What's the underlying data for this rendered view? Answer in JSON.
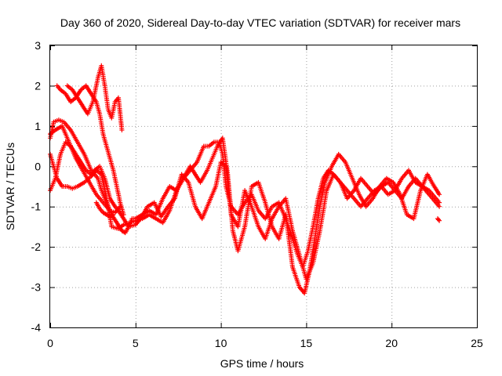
{
  "chart_data": {
    "type": "scatter",
    "title": "Day 360 of 2020, Sidereal Day-to-day VTEC variation (SDTVAR) for receiver mars",
    "xlabel": "GPS time / hours",
    "ylabel": "SDTVAR / TECUs",
    "xlim": [
      0,
      25
    ],
    "ylim": [
      -4,
      3
    ],
    "xticks": [
      0,
      5,
      10,
      15,
      20,
      25
    ],
    "yticks": [
      -4,
      -3,
      -2,
      -1,
      0,
      1,
      2,
      3
    ],
    "grid": true,
    "marker": "plus",
    "color": "#ff0000",
    "series": [
      {
        "name": "SDTVAR",
        "segments": [
          {
            "x": [
              0.0,
              0.2,
              0.5,
              0.8,
              1.2,
              1.6,
              2.0,
              2.4,
              2.8,
              3.0,
              3.3,
              3.6,
              3.9,
              4.2,
              4.4,
              4.6,
              4.8,
              5.0,
              5.4,
              5.8,
              6.2,
              6.6,
              7.0,
              7.4,
              7.8,
              8.2,
              8.6,
              9.0,
              9.3,
              9.6,
              9.9,
              10.1,
              10.3,
              10.6,
              11.0,
              11.4,
              11.8,
              12.2,
              12.6,
              13.0,
              13.4,
              13.8,
              14.2,
              14.5,
              14.8,
              15.1,
              15.4,
              15.7,
              16.0,
              16.3,
              16.6,
              17.0,
              17.4,
              17.8,
              18.2,
              18.6,
              19.0,
              19.4,
              19.8,
              20.2,
              20.6,
              21.0,
              21.4,
              21.8,
              22.2,
              22.6,
              22.8
            ],
            "y": [
              0.7,
              1.1,
              1.15,
              1.1,
              0.9,
              0.6,
              0.3,
              -0.1,
              -0.3,
              -0.6,
              -0.9,
              -1.2,
              -1.4,
              -1.6,
              -1.65,
              -1.5,
              -1.3,
              -1.3,
              -1.2,
              -1.1,
              -1.2,
              -0.8,
              -0.5,
              -0.6,
              -0.3,
              -0.1,
              0.1,
              0.5,
              0.5,
              0.6,
              0.6,
              0.3,
              -0.5,
              -1.0,
              -1.2,
              -0.9,
              -0.7,
              -1.1,
              -1.3,
              -1.0,
              -0.9,
              -1.3,
              -1.8,
              -2.2,
              -2.5,
              -2.1,
              -1.5,
              -0.8,
              -0.3,
              -0.1,
              -0.2,
              -0.4,
              -0.6,
              -0.8,
              -1.0,
              -0.8,
              -0.6,
              -0.5,
              -0.7,
              -0.6,
              -0.3,
              -0.1,
              -0.4,
              -0.5,
              -0.6,
              -0.8,
              -0.9
            ]
          },
          {
            "x": [
              0.0,
              0.2,
              0.4,
              0.7,
              1.0,
              1.3,
              1.6,
              2.0,
              2.4,
              2.7,
              3.0,
              3.3,
              3.6,
              4.0,
              4.3,
              4.7,
              5.0,
              5.4,
              5.8,
              6.2,
              6.6,
              7.0,
              7.4,
              7.8,
              8.2,
              8.5,
              8.8,
              9.2,
              9.5,
              9.8,
              10.1,
              10.4,
              10.7,
              11.0,
              11.4,
              11.8,
              12.2,
              12.6,
              13.0,
              13.4,
              13.8,
              14.2,
              14.6,
              14.9,
              15.2,
              15.5,
              15.8,
              16.1,
              16.5,
              16.9,
              17.3,
              17.7,
              18.1,
              18.5,
              18.9,
              19.3,
              19.7,
              20.1,
              20.5,
              20.9,
              21.3,
              21.7,
              22.1,
              22.5,
              22.8
            ],
            "y": [
              0.3,
              0.0,
              -0.3,
              -0.5,
              -0.5,
              -0.55,
              -0.5,
              -0.4,
              -0.25,
              -0.1,
              -0.2,
              -0.8,
              -1.5,
              -1.55,
              -1.45,
              -1.4,
              -1.35,
              -1.3,
              -1.2,
              -1.3,
              -1.4,
              -1.1,
              -0.6,
              -0.3,
              0.0,
              -0.2,
              -0.4,
              -0.1,
              0.2,
              0.5,
              0.7,
              -0.2,
              -1.6,
              -2.1,
              -1.5,
              -0.5,
              -0.4,
              -0.9,
              -1.5,
              -1.8,
              -1.2,
              -2.5,
              -3.0,
              -3.15,
              -2.6,
              -1.8,
              -1.0,
              -0.4,
              0.0,
              0.3,
              0.1,
              -0.3,
              -0.7,
              -1.0,
              -0.8,
              -0.5,
              -0.3,
              -0.4,
              -0.7,
              -1.2,
              -1.3,
              -0.6,
              -0.2,
              -0.5,
              -0.7
            ]
          },
          {
            "x": [
              0.0,
              0.3,
              0.6,
              0.9,
              1.2,
              1.5,
              1.8,
              2.1,
              2.4,
              2.6,
              2.9,
              3.2,
              3.5,
              3.8,
              4.0,
              4.3,
              4.6,
              5.0,
              5.3,
              5.7,
              6.1,
              6.5,
              6.9,
              7.3,
              7.7,
              8.1,
              8.5,
              8.9,
              9.3,
              9.7,
              10.0,
              10.3,
              10.6,
              11.0,
              11.4,
              11.8,
              12.2,
              12.6,
              13.0,
              13.4,
              13.8,
              14.2,
              14.6,
              15.0,
              15.4,
              15.8,
              16.2,
              16.6,
              17.0,
              17.4,
              17.8,
              18.2,
              18.6,
              19.0,
              19.4,
              19.8,
              20.2,
              20.6,
              21.0,
              21.4,
              21.8,
              22.2,
              22.6,
              22.8
            ],
            "y": [
              -0.6,
              -0.3,
              0.3,
              0.6,
              0.5,
              0.3,
              0.1,
              -0.1,
              -0.2,
              -0.1,
              0.0,
              -0.3,
              -0.8,
              -1.0,
              -1.1,
              -1.3,
              -1.5,
              -1.45,
              -1.3,
              -1.0,
              -0.9,
              -1.25,
              -1.0,
              -0.8,
              -0.2,
              -0.4,
              -1.0,
              -1.3,
              -0.9,
              -0.5,
              0.1,
              0.0,
              -1.2,
              -1.5,
              -0.6,
              -1.0,
              -1.5,
              -1.8,
              -1.3,
              -1.0,
              -0.8,
              -1.6,
              -2.2,
              -2.8,
              -2.4,
              -1.6,
              -0.6,
              -0.2,
              -0.4,
              -0.8,
              -0.6,
              -0.3,
              -0.5,
              -0.7,
              -0.5,
              -0.4,
              -0.6,
              -0.8,
              -0.5,
              -0.3,
              -0.5,
              -0.7,
              -0.9,
              -1.0
            ]
          },
          {
            "x": [
              0.4,
              0.6,
              0.9,
              1.2,
              1.5,
              1.8,
              2.1,
              2.4,
              2.7,
              2.9,
              3.1,
              3.3,
              3.5,
              3.7,
              3.9,
              4.1,
              4.3
            ],
            "y": [
              2.0,
              1.9,
              1.8,
              1.6,
              1.7,
              1.9,
              2.0,
              1.8,
              1.6,
              1.3,
              0.8,
              0.5,
              0.2,
              -0.1,
              -0.5,
              -0.9,
              -1.2
            ]
          },
          {
            "x": [
              1.0,
              1.3,
              1.6,
              1.9,
              2.2,
              2.5,
              2.8,
              3.0,
              3.2,
              3.4,
              3.6,
              3.8,
              4.0,
              4.2
            ],
            "y": [
              2.0,
              1.9,
              1.7,
              1.5,
              1.3,
              1.6,
              2.2,
              2.5,
              2.0,
              1.4,
              1.2,
              1.6,
              1.7,
              0.9
            ]
          },
          {
            "x": [
              0.0,
              0.3,
              0.7,
              1.1,
              1.5,
              1.9,
              2.3,
              2.7,
              3.1,
              3.5,
              3.8,
              4.1
            ],
            "y": [
              0.8,
              0.9,
              1.0,
              0.6,
              0.2,
              -0.1,
              -0.4,
              -0.7,
              -0.9,
              -1.1,
              -1.15,
              -1.0
            ]
          },
          {
            "x": [
              2.7,
              2.9,
              3.1,
              3.3,
              3.5,
              3.7
            ],
            "y": [
              -0.9,
              -1.05,
              -1.15,
              -1.2,
              -1.25,
              -1.2
            ]
          },
          {
            "x": [
              22.7,
              22.8
            ],
            "y": [
              -1.3,
              -1.35
            ]
          }
        ]
      }
    ]
  }
}
